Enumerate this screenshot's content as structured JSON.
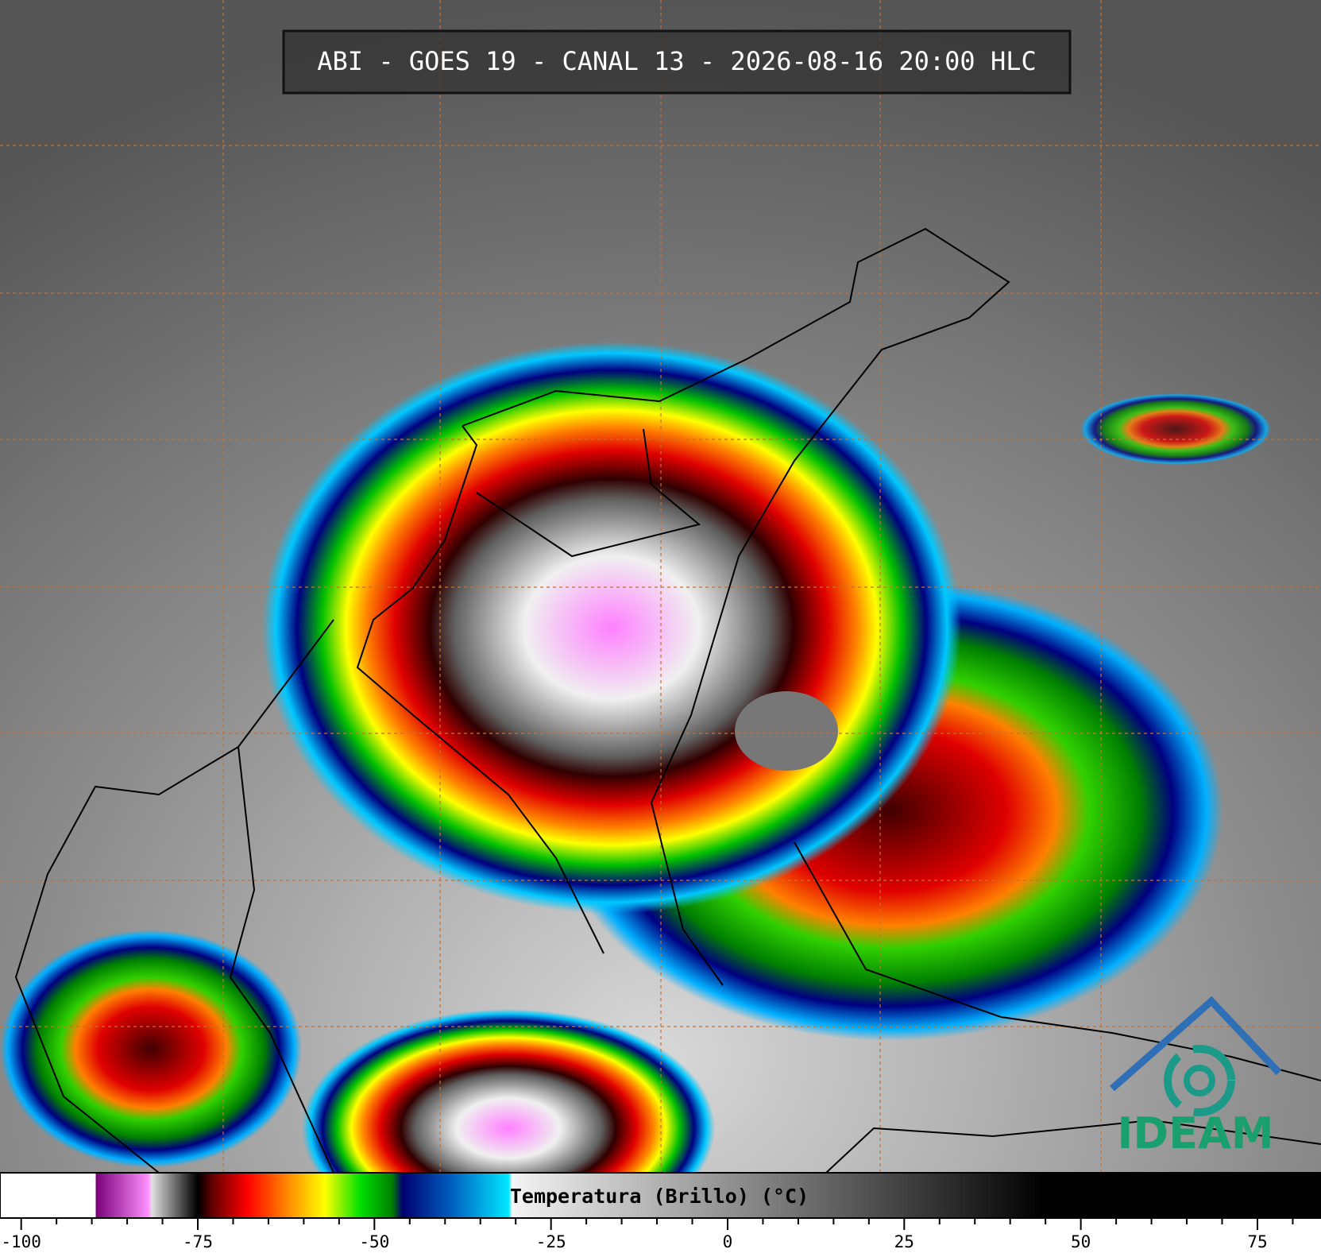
{
  "header": {
    "title": "ABI - GOES 19 - CANAL 13 - 2026-08-16 20:00 HLC"
  },
  "colorbar": {
    "label": "Temperatura (Brillo) (°C)",
    "xlim": [
      -103,
      84
    ],
    "xticks": [
      -100,
      -75,
      -50,
      -25,
      0,
      25,
      50,
      75
    ],
    "minor_ticks": [
      -95,
      -90,
      -85,
      -80,
      -70,
      -65,
      -60,
      -55,
      -45,
      -40,
      -35,
      -30,
      -20,
      -15,
      -10,
      -5,
      5,
      10,
      15,
      20,
      30,
      35,
      40,
      45,
      55,
      60,
      65,
      70,
      80
    ],
    "colorscale": [
      {
        "value": -103,
        "color": "#ffffff"
      },
      {
        "value": -89.5,
        "color": "#ffffff"
      },
      {
        "value": -89.4,
        "color": "#7a007a"
      },
      {
        "value": -82,
        "color": "#ff90ff"
      },
      {
        "value": -81.5,
        "color": "#e0e0e0"
      },
      {
        "value": -76,
        "color": "#202020"
      },
      {
        "value": -75,
        "color": "#000000"
      },
      {
        "value": -73,
        "color": "#600000"
      },
      {
        "value": -68,
        "color": "#ff0000"
      },
      {
        "value": -62,
        "color": "#ff9000"
      },
      {
        "value": -57,
        "color": "#ffff00"
      },
      {
        "value": -52,
        "color": "#00e000"
      },
      {
        "value": -47.5,
        "color": "#008000"
      },
      {
        "value": -46,
        "color": "#000070"
      },
      {
        "value": -39,
        "color": "#0060c0"
      },
      {
        "value": -31,
        "color": "#00e8ff"
      },
      {
        "value": -30.5,
        "color": "#f4f4f4"
      },
      {
        "value": 45,
        "color": "#000000"
      },
      {
        "value": 84,
        "color": "#000000"
      }
    ]
  },
  "logo": {
    "text": "IDEAM"
  }
}
